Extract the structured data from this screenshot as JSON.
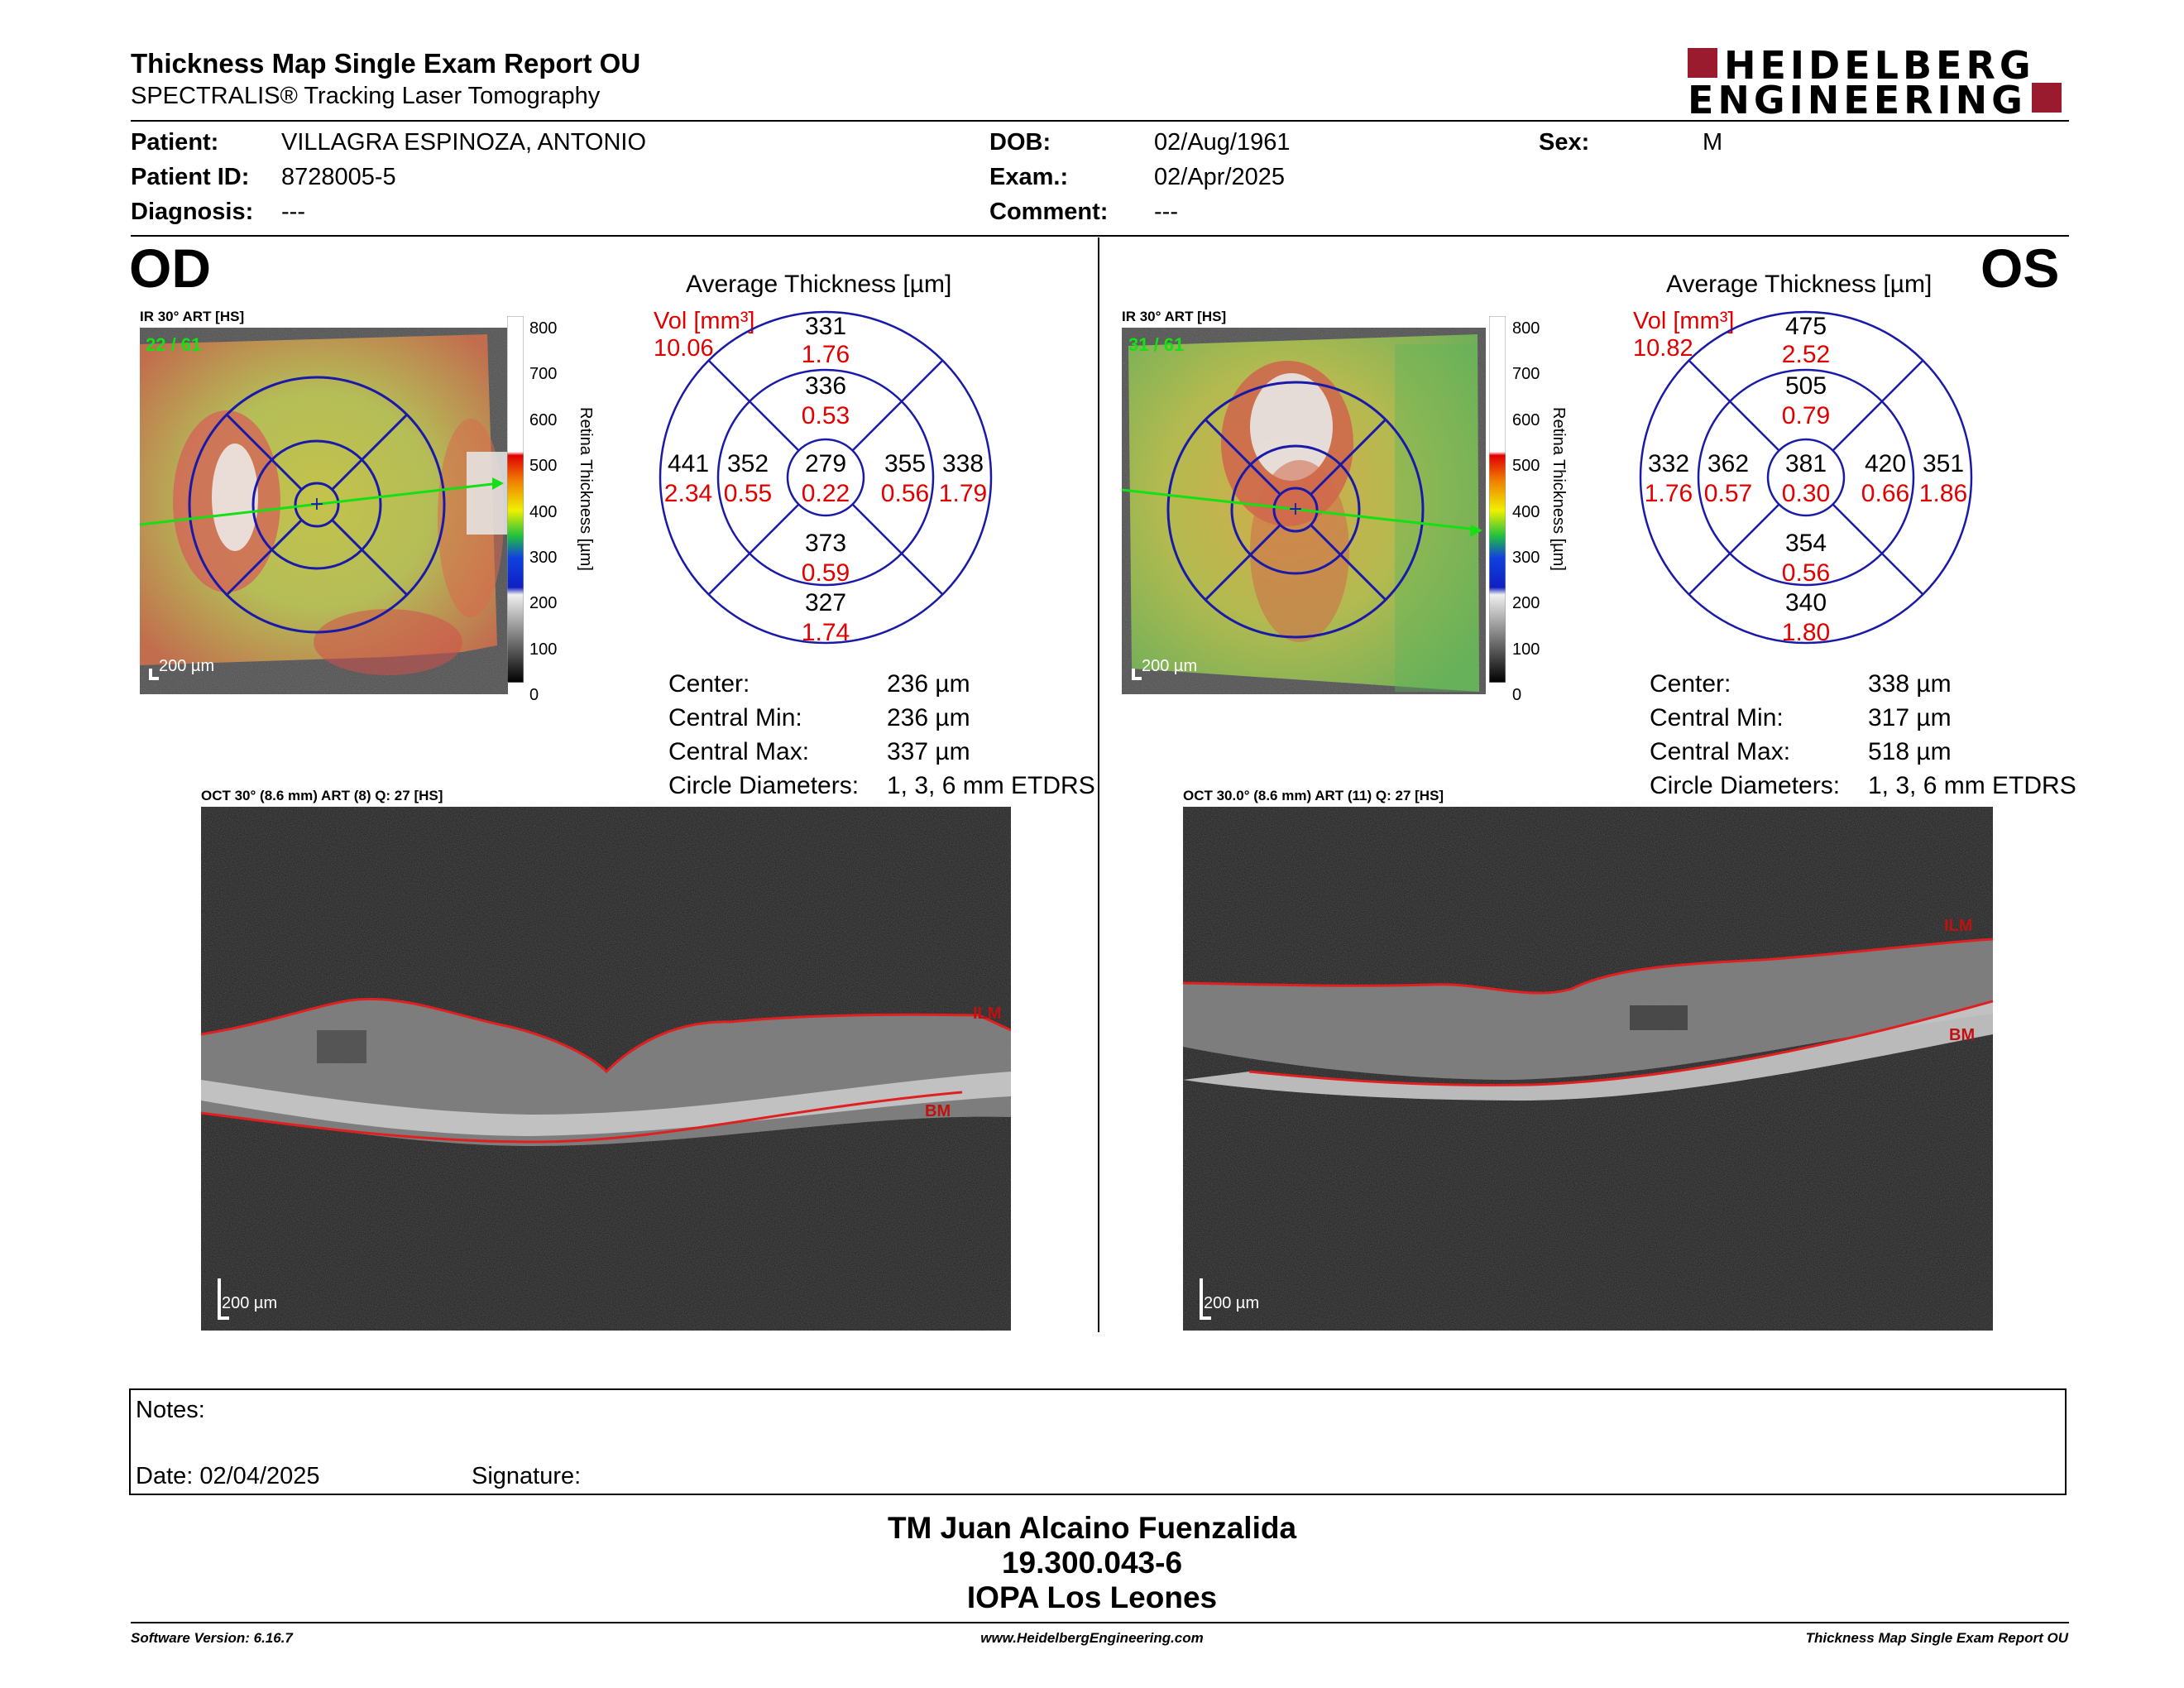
{
  "header": {
    "title": "Thickness Map Single Exam Report OU",
    "subtitle": "SPECTRALIS® Tracking Laser Tomography",
    "logo_line1": "HEIDELBERG",
    "logo_line2": "ENGINEERING"
  },
  "patient": {
    "patient_label": "Patient:",
    "patient_value": "VILLAGRA ESPINOZA, ANTONIO",
    "id_label": "Patient ID:",
    "id_value": "8728005-5",
    "diagnosis_label": "Diagnosis:",
    "diagnosis_value": "---",
    "dob_label": "DOB:",
    "dob_value": "02/Aug/1961",
    "exam_label": "Exam.:",
    "exam_value": "02/Apr/2025",
    "comment_label": "Comment:",
    "comment_value": "---",
    "sex_label": "Sex:",
    "sex_value": "M"
  },
  "od": {
    "eye_label": "OD",
    "ir_label": "IR 30° ART [HS]",
    "ir_counter": "22 / 61",
    "scale_label": "200 µm",
    "colorbar_title": "Retina  Thickness [µm]",
    "colorbar_ticks": [
      "800",
      "700",
      "600",
      "500",
      "400",
      "300",
      "200",
      "100",
      "0"
    ],
    "avg_title": "Average Thickness [µm]",
    "vol_label": "Vol [mm³]",
    "vol_value": "10.06",
    "sectors": {
      "outer_top": {
        "t": "331",
        "v": "1.76"
      },
      "inner_top": {
        "t": "336",
        "v": "0.53"
      },
      "outer_left": {
        "t": "441",
        "v": "2.34"
      },
      "inner_left": {
        "t": "352",
        "v": "0.55"
      },
      "center": {
        "t": "279",
        "v": "0.22"
      },
      "inner_right": {
        "t": "355",
        "v": "0.56"
      },
      "outer_right": {
        "t": "338",
        "v": "1.79"
      },
      "inner_bottom": {
        "t": "373",
        "v": "0.59"
      },
      "outer_bottom": {
        "t": "327",
        "v": "1.74"
      }
    },
    "stats": [
      {
        "label": "Center:",
        "value": "236 µm"
      },
      {
        "label": "Central Min:",
        "value": "236 µm"
      },
      {
        "label": "Central Max:",
        "value": "337 µm"
      },
      {
        "label": "Circle Diameters:",
        "value": "1, 3, 6 mm ETDRS"
      }
    ],
    "oct_label": "OCT 30° (8.6 mm) ART (8) Q: 27 [HS]",
    "ilm_label": "ILM",
    "bm_label": "BM",
    "oct_scale": "200 µm"
  },
  "os": {
    "eye_label": "OS",
    "ir_label": "IR 30° ART [HS]",
    "ir_counter": "31 / 61",
    "scale_label": "200 µm",
    "colorbar_title": "Retina  Thickness [µm]",
    "colorbar_ticks": [
      "800",
      "700",
      "600",
      "500",
      "400",
      "300",
      "200",
      "100",
      "0"
    ],
    "avg_title": "Average Thickness [µm]",
    "vol_label": "Vol [mm³]",
    "vol_value": "10.82",
    "sectors": {
      "outer_top": {
        "t": "475",
        "v": "2.52"
      },
      "inner_top": {
        "t": "505",
        "v": "0.79"
      },
      "outer_left": {
        "t": "332",
        "v": "1.76"
      },
      "inner_left": {
        "t": "362",
        "v": "0.57"
      },
      "center": {
        "t": "381",
        "v": "0.30"
      },
      "inner_right": {
        "t": "420",
        "v": "0.66"
      },
      "outer_right": {
        "t": "351",
        "v": "1.86"
      },
      "inner_bottom": {
        "t": "354",
        "v": "0.56"
      },
      "outer_bottom": {
        "t": "340",
        "v": "1.80"
      }
    },
    "stats": [
      {
        "label": "Center:",
        "value": "338 µm"
      },
      {
        "label": "Central Min:",
        "value": "317 µm"
      },
      {
        "label": "Central Max:",
        "value": "518 µm"
      },
      {
        "label": "Circle Diameters:",
        "value": "1, 3, 6 mm ETDRS"
      }
    ],
    "oct_label": "OCT 30.0° (8.6 mm) ART (11) Q: 27 [HS]",
    "ilm_label": "ILM",
    "bm_label": "BM",
    "oct_scale": "200 µm"
  },
  "notes": {
    "notes_label": "Notes:",
    "date_label": "Date: 02/04/2025",
    "signature_label": "Signature:"
  },
  "signer": {
    "name": "TM Juan Alcaino Fuenzalida",
    "rut": "19.300.043-6",
    "institution": "IOPA Los Leones"
  },
  "footer": {
    "software": "Software Version: 6.16.7",
    "url": "www.HeidelbergEngineering.com",
    "report": "Thickness Map Single Exam Report OU"
  },
  "colors": {
    "vol_red": "#e00000",
    "grid_blue": "#1a1aa8",
    "logo_red": "#9b1b2e",
    "layer_red": "#e02020"
  }
}
